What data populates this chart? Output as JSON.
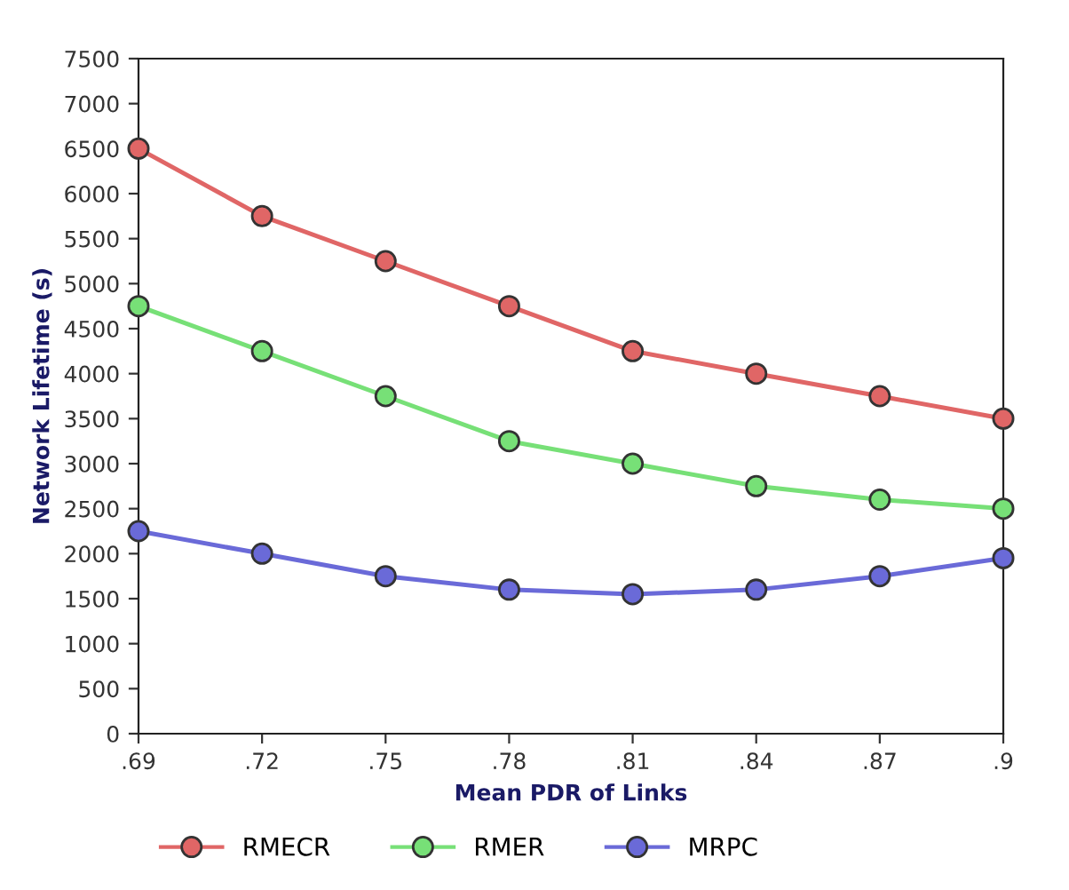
{
  "chart_data": {
    "type": "line",
    "xlabel": "Mean PDR of Links",
    "ylabel": "Network Lifetime (s)",
    "x": [
      0.69,
      0.72,
      0.75,
      0.78,
      0.81,
      0.84,
      0.87,
      0.9
    ],
    "series": [
      {
        "name": "RMECR",
        "color": "#e06666",
        "values": [
          6500,
          5750,
          5250,
          4750,
          4250,
          4000,
          3750,
          3500
        ]
      },
      {
        "name": "RMER",
        "color": "#77e077",
        "values": [
          4750,
          4250,
          3750,
          3250,
          3000,
          2750,
          2600,
          2500
        ]
      },
      {
        "name": "MRPC",
        "color": "#6a6ad8",
        "values": [
          2250,
          2000,
          1750,
          1600,
          1550,
          1600,
          1750,
          1950
        ]
      }
    ],
    "xlim": [
      0.69,
      0.9
    ],
    "xticks": [
      {
        "value": 0.69,
        "label": ".69"
      },
      {
        "value": 0.72,
        "label": ".72"
      },
      {
        "value": 0.75,
        "label": ".75"
      },
      {
        "value": 0.78,
        "label": ".78"
      },
      {
        "value": 0.81,
        "label": ".81"
      },
      {
        "value": 0.84,
        "label": ".84"
      },
      {
        "value": 0.87,
        "label": ".87"
      },
      {
        "value": 0.9,
        "label": ".9"
      }
    ],
    "ylim": [
      0,
      7500
    ],
    "yticks": [
      0,
      500,
      1000,
      1500,
      2000,
      2500,
      3000,
      3500,
      4000,
      4500,
      5000,
      5500,
      6000,
      6500,
      7000,
      7500
    ],
    "grid": false,
    "legend": "bottom left",
    "marker": "circle",
    "line_style": "solid"
  }
}
